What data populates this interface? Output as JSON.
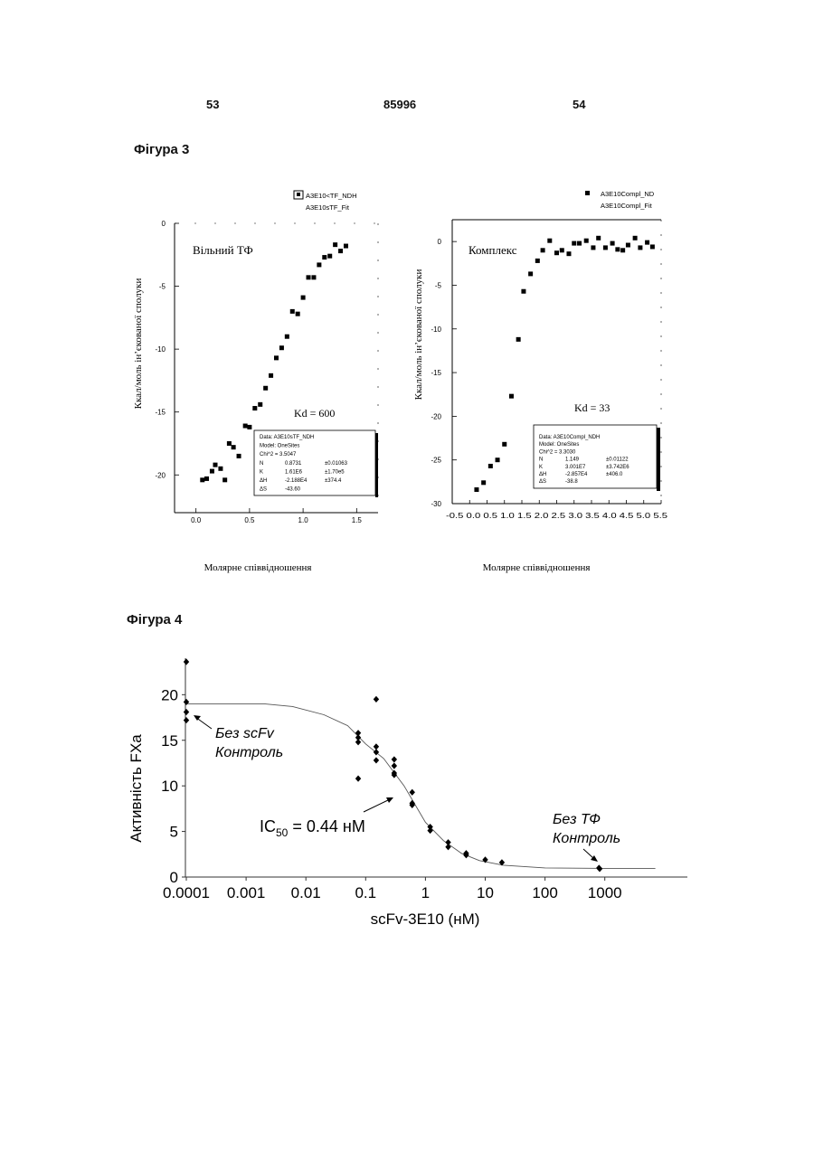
{
  "header": {
    "page_left": "53",
    "patent_number": "85996",
    "page_right": "54"
  },
  "figure3": {
    "title": "Фігура 3",
    "left": {
      "legend": [
        "A3E10<TF_NDH",
        "A3E10sTF_Fit"
      ],
      "label": "Вільний ТФ",
      "kd": "Kd = 600",
      "ylabel": "Ккал/моль ін’єкованої сполуки",
      "xlabel": "Молярне співвідношення",
      "info": [
        [
          "Data: A3E10sTF_NDH",
          "",
          ""
        ],
        [
          "Model: OneSites",
          "",
          ""
        ],
        [
          "Chi^2 = 3.5047",
          "",
          ""
        ],
        [
          "N",
          "0.8731",
          "±0.01063"
        ],
        [
          "K",
          "1.61E6",
          "±1.70e5"
        ],
        [
          "ΔH",
          "-2.188E4",
          "±374.4"
        ],
        [
          "ΔS",
          "-43.60",
          ""
        ]
      ]
    },
    "right": {
      "legend": [
        "A3E10Compl_ND",
        "A3E10Compl_Fit"
      ],
      "label": "Комплекс",
      "kd": "Kd = 33",
      "ylabel": "Ккал/моль ін’єкованої сполуки",
      "xlabel": "Молярне співвідношення",
      "info": [
        [
          "Data: A3E10Compl_NDH",
          "",
          ""
        ],
        [
          "Model: OneSites",
          "",
          ""
        ],
        [
          "Chi^2 = 3.3030",
          "",
          ""
        ],
        [
          "N",
          "1.149",
          "±0.01122"
        ],
        [
          "K",
          "3.001E7",
          "±3.742E6"
        ],
        [
          "ΔH",
          "-2.857E4",
          "±406.0"
        ],
        [
          "ΔS",
          "-38.8",
          ""
        ]
      ]
    }
  },
  "figure4": {
    "title": "Фігура 4"
  },
  "chart_data": [
    {
      "type": "scatter",
      "title": "",
      "xlabel": "Молярне співвідношення",
      "ylabel": "Ккал/моль ін’єкованої сполуки",
      "xlim": [
        -0.2,
        1.7
      ],
      "ylim": [
        -23,
        0
      ],
      "x_ticks": [
        "0.0",
        "0.5",
        "1.0",
        "1.5"
      ],
      "y_ticks": [
        "0",
        "-5",
        "-10",
        "-15",
        "-20"
      ],
      "series": [
        {
          "name": "A3E10<TF_NDH",
          "points": [
            [
              0.06,
              -20.4
            ],
            [
              0.1,
              -20.3
            ],
            [
              0.15,
              -19.7
            ],
            [
              0.18,
              -19.2
            ],
            [
              0.23,
              -19.5
            ],
            [
              0.27,
              -20.4
            ],
            [
              0.31,
              -17.5
            ],
            [
              0.35,
              -17.8
            ],
            [
              0.4,
              -18.5
            ],
            [
              0.46,
              -16.1
            ],
            [
              0.5,
              -16.2
            ],
            [
              0.55,
              -14.7
            ],
            [
              0.6,
              -14.4
            ],
            [
              0.65,
              -13.1
            ],
            [
              0.7,
              -12.1
            ],
            [
              0.75,
              -10.7
            ],
            [
              0.8,
              -9.9
            ],
            [
              0.85,
              -9.0
            ],
            [
              0.9,
              -7.0
            ],
            [
              0.95,
              -7.2
            ],
            [
              1.0,
              -5.9
            ],
            [
              1.05,
              -4.3
            ],
            [
              1.1,
              -4.3
            ],
            [
              1.15,
              -3.3
            ],
            [
              1.2,
              -2.7
            ],
            [
              1.25,
              -2.6
            ],
            [
              1.3,
              -1.7
            ],
            [
              1.35,
              -2.2
            ],
            [
              1.4,
              -1.8
            ]
          ]
        }
      ]
    },
    {
      "type": "scatter",
      "title": "",
      "xlabel": "Молярне співвідношення",
      "ylabel": "Ккал/моль ін’єкованої сполуки",
      "xlim": [
        -0.5,
        5.5
      ],
      "ylim": [
        -30,
        2.5
      ],
      "x_tick_labels": "-0.5 0.0 0.5 1.0 1.5 2.0 2.5 3.0 3.5 4.0 4.5 5.0 5.5",
      "y_ticks": [
        "0",
        "-5",
        "-10",
        "-15",
        "-20",
        "-25",
        "-30"
      ],
      "series": [
        {
          "name": "A3E10Compl_ND",
          "points": [
            [
              0.2,
              -28.4
            ],
            [
              0.4,
              -27.6
            ],
            [
              0.6,
              -25.7
            ],
            [
              0.8,
              -25.0
            ],
            [
              1.0,
              -23.2
            ],
            [
              1.2,
              -17.7
            ],
            [
              1.4,
              -11.2
            ],
            [
              1.55,
              -5.7
            ],
            [
              1.75,
              -3.7
            ],
            [
              1.95,
              -2.2
            ],
            [
              2.1,
              -1.0
            ],
            [
              2.3,
              0.1
            ],
            [
              2.5,
              -1.3
            ],
            [
              2.65,
              -1.0
            ],
            [
              2.85,
              -1.4
            ],
            [
              3.0,
              -0.2
            ],
            [
              3.15,
              -0.2
            ],
            [
              3.35,
              0.1
            ],
            [
              3.55,
              -0.7
            ],
            [
              3.7,
              0.4
            ],
            [
              3.9,
              -0.7
            ],
            [
              4.1,
              -0.2
            ],
            [
              4.25,
              -0.9
            ],
            [
              4.4,
              -1.0
            ],
            [
              4.55,
              -0.4
            ],
            [
              4.75,
              0.4
            ],
            [
              4.9,
              -0.7
            ],
            [
              5.1,
              -0.1
            ],
            [
              5.25,
              -0.6
            ]
          ]
        }
      ]
    },
    {
      "type": "scatter",
      "title": "",
      "xscale": "log",
      "xlabel": "scFv-3E10 (нМ)",
      "ylabel": "Активність FXa",
      "xlim": [
        0.0001,
        7000
      ],
      "ylim": [
        0,
        24
      ],
      "x_ticks": [
        "0.0001",
        "0.001",
        "0.01",
        "0.1",
        "1",
        "10",
        "100",
        "1000"
      ],
      "y_ticks": [
        "0",
        "5",
        "10",
        "15",
        "20"
      ],
      "annotations": [
        {
          "lines": [
            "Без scFv",
            "Контроль"
          ],
          "italic": true
        },
        {
          "text": "IC",
          "sub": "50",
          "rest": " = 0.44 нМ"
        },
        {
          "lines": [
            "Без ТФ",
            "Контроль"
          ],
          "italic": true
        }
      ],
      "series": [
        {
          "name": "",
          "points": [
            [
              0.0001,
              23.6
            ],
            [
              0.0001,
              19.2
            ],
            [
              0.0001,
              18.1
            ],
            [
              0.0001,
              17.2
            ],
            [
              0.075,
              15.8
            ],
            [
              0.075,
              15.3
            ],
            [
              0.075,
              14.8
            ],
            [
              0.075,
              10.8
            ],
            [
              0.15,
              19.5
            ],
            [
              0.15,
              14.3
            ],
            [
              0.15,
              13.7
            ],
            [
              0.15,
              12.8
            ],
            [
              0.3,
              12.9
            ],
            [
              0.3,
              12.2
            ],
            [
              0.3,
              11.4
            ],
            [
              0.3,
              11.2
            ],
            [
              0.6,
              9.3
            ],
            [
              0.6,
              8.1
            ],
            [
              0.6,
              7.9
            ],
            [
              1.2,
              5.5
            ],
            [
              1.2,
              5.1
            ],
            [
              2.4,
              3.8
            ],
            [
              2.4,
              3.3
            ],
            [
              4.8,
              2.6
            ],
            [
              4.8,
              2.4
            ],
            [
              10,
              1.9
            ],
            [
              19,
              1.6
            ],
            [
              800,
              1.0
            ],
            [
              820,
              0.9
            ]
          ]
        },
        {
          "name": "",
          "line": [
            [
              0.0001,
              19.0
            ],
            [
              0.002,
              19.0
            ],
            [
              0.006,
              18.7
            ],
            [
              0.02,
              17.8
            ],
            [
              0.05,
              16.6
            ],
            [
              0.1,
              14.6
            ],
            [
              0.2,
              13.0
            ],
            [
              0.44,
              10.0
            ],
            [
              1,
              6.0
            ],
            [
              2,
              4.0
            ],
            [
              4,
              2.6
            ],
            [
              8,
              1.8
            ],
            [
              20,
              1.3
            ],
            [
              100,
              1.0
            ],
            [
              1000,
              0.95
            ],
            [
              7000,
              0.95
            ]
          ]
        }
      ]
    }
  ]
}
